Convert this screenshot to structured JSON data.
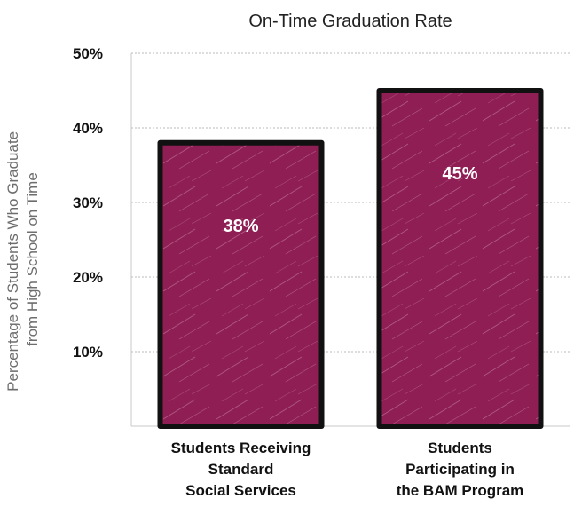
{
  "chart_data": {
    "type": "bar",
    "title": "On-Time Graduation Rate",
    "ylabel": [
      "Percentage of Students Who Graduate",
      "from High School on Time"
    ],
    "categories": [
      [
        "Students Receiving",
        "Standard",
        "Social Services"
      ],
      [
        "Students",
        "Participating in",
        "the BAM Program"
      ]
    ],
    "values": [
      38,
      45
    ],
    "data_labels": [
      "38%",
      "45%"
    ],
    "ylim": [
      0,
      50
    ],
    "yticks": [
      {
        "value": 10,
        "label": "10%"
      },
      {
        "value": 20,
        "label": "20%"
      },
      {
        "value": 30,
        "label": "30%"
      },
      {
        "value": 40,
        "label": "40%"
      },
      {
        "value": 50,
        "label": "50%"
      }
    ],
    "grid": true,
    "colors": {
      "bar_fill": "#8f1e54",
      "bar_outline": "#111111",
      "grid": "#bbbbbb",
      "axis": "#c8c8c8"
    }
  }
}
